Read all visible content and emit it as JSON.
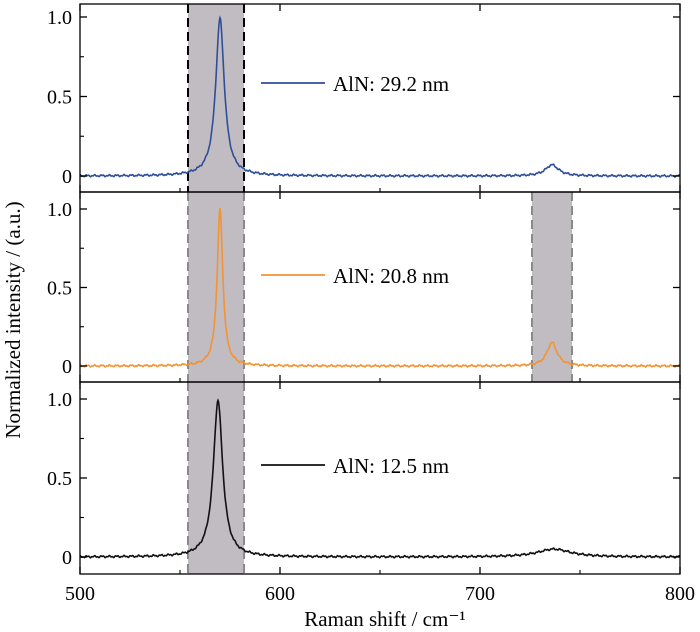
{
  "chart_data": {
    "type": "line",
    "xlabel": "Raman shift / cm⁻¹",
    "ylabel": "Normalized intensity / (a.u.)",
    "xlim": [
      500,
      800
    ],
    "x_ticks": [
      "500",
      "600",
      "700",
      "800"
    ],
    "y_ticks": [
      "0",
      "0.5",
      "1.0"
    ],
    "ylim": [
      -0.05,
      1.1
    ],
    "grid": false,
    "panels": [
      {
        "name": "AlN: 29.2 nm",
        "color": "#2f4e9a",
        "legend": "AlN: 29.2 nm",
        "shaded_bands": [
          {
            "x_start": 554,
            "x_end": 582,
            "edge": "black"
          }
        ],
        "peaks": [
          {
            "center": 570,
            "height": 0.99,
            "width": 2.6
          },
          {
            "center": 736,
            "height": 0.07,
            "width": 4.0
          }
        ],
        "points": [
          [
            500,
            0.0
          ],
          [
            530,
            0.01
          ],
          [
            548,
            0.02
          ],
          [
            560,
            0.06
          ],
          [
            566,
            0.3
          ],
          [
            570,
            0.99
          ],
          [
            574,
            0.3
          ],
          [
            580,
            0.03
          ],
          [
            600,
            0.01
          ],
          [
            700,
            0.0
          ],
          [
            730,
            0.03
          ],
          [
            736,
            0.08
          ],
          [
            742,
            0.03
          ],
          [
            760,
            0.0
          ],
          [
            800,
            0.0
          ]
        ]
      },
      {
        "name": "AlN: 20.8 nm",
        "color": "#f39332",
        "legend": "AlN: 20.8 nm",
        "shaded_bands": [
          {
            "x_start": 554,
            "x_end": 582,
            "edge": "gray"
          },
          {
            "x_start": 726,
            "x_end": 746,
            "edge": "gray"
          }
        ],
        "peaks": [
          {
            "center": 570,
            "height": 1.0,
            "width": 1.7
          },
          {
            "center": 736,
            "height": 0.15,
            "width": 3.0
          }
        ],
        "points": [
          [
            500,
            0.0
          ],
          [
            550,
            0.005
          ],
          [
            562,
            0.02
          ],
          [
            567,
            0.3
          ],
          [
            570,
            1.0
          ],
          [
            573,
            0.3
          ],
          [
            578,
            0.02
          ],
          [
            600,
            0.0
          ],
          [
            725,
            0.01
          ],
          [
            731,
            0.05
          ],
          [
            736,
            0.15
          ],
          [
            741,
            0.05
          ],
          [
            748,
            0.01
          ],
          [
            800,
            0.0
          ]
        ]
      },
      {
        "name": "AlN: 12.5 nm",
        "color": "#111111",
        "legend": "AlN: 12.5 nm",
        "shaded_bands": [
          {
            "x_start": 554,
            "x_end": 582,
            "edge": "gray"
          }
        ],
        "peaks": [
          {
            "center": 569,
            "height": 0.99,
            "width": 2.8
          },
          {
            "center": 737,
            "height": 0.05,
            "width": 10.0
          }
        ],
        "points": [
          [
            500,
            0.0
          ],
          [
            540,
            0.005
          ],
          [
            555,
            0.02
          ],
          [
            563,
            0.15
          ],
          [
            569,
            0.99
          ],
          [
            575,
            0.15
          ],
          [
            583,
            0.02
          ],
          [
            600,
            0.005
          ],
          [
            720,
            0.0
          ],
          [
            730,
            0.03
          ],
          [
            737,
            0.05
          ],
          [
            745,
            0.04
          ],
          [
            760,
            0.01
          ],
          [
            800,
            0.0
          ]
        ]
      }
    ]
  }
}
